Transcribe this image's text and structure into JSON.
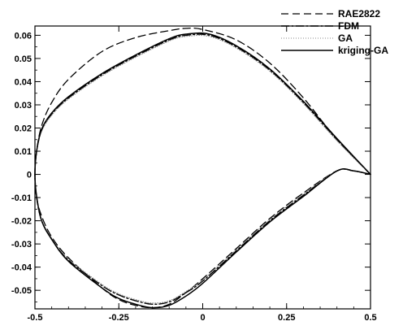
{
  "chart_data": {
    "type": "line",
    "title": "",
    "xlabel": "",
    "ylabel": "",
    "xlim": [
      -0.5,
      0.5
    ],
    "ylim": [
      -0.058,
      0.064
    ],
    "xticks": [
      "-0.5",
      "-0.25",
      "0",
      "0.25",
      "0.5"
    ],
    "xtick_values": [
      -0.5,
      -0.25,
      0,
      0.25,
      0.5
    ],
    "yticks": [
      "0.06",
      "0.05",
      "0.04",
      "0.03",
      "0.02",
      "0.01",
      "0",
      "-0.01",
      "-0.02",
      "-0.03",
      "-0.04",
      "-0.05"
    ],
    "ytick_values": [
      0.06,
      0.05,
      0.04,
      0.03,
      0.02,
      0.01,
      0,
      -0.01,
      -0.02,
      -0.03,
      -0.04,
      -0.05
    ],
    "grid": false,
    "legend_position": "top-right",
    "series": [
      {
        "name": "RAE2822",
        "style": "dashed",
        "x": [
          0.5,
          0.4,
          0.3,
          0.2,
          0.1,
          0.0,
          -0.05,
          -0.1,
          -0.2,
          -0.3,
          -0.4,
          -0.45,
          -0.48,
          -0.495,
          -0.5,
          -0.495,
          -0.48,
          -0.45,
          -0.4,
          -0.3,
          -0.25,
          -0.2,
          -0.15,
          -0.1,
          -0.05,
          0.0,
          0.1,
          0.2,
          0.3,
          0.4,
          0.45,
          0.5
        ],
        "y": [
          0.0,
          0.015,
          0.033,
          0.048,
          0.058,
          0.0625,
          0.063,
          0.062,
          0.059,
          0.053,
          0.041,
          0.031,
          0.021,
          0.01,
          0.0,
          -0.01,
          -0.018,
          -0.027,
          -0.036,
          -0.049,
          -0.054,
          -0.0565,
          -0.0575,
          -0.056,
          -0.051,
          -0.045,
          -0.032,
          -0.019,
          -0.008,
          0.0015,
          0.0015,
          0.0
        ]
      },
      {
        "name": "FDM",
        "style": "dashdot",
        "x": [
          0.5,
          0.4,
          0.3,
          0.2,
          0.1,
          0.02,
          -0.05,
          -0.1,
          -0.2,
          -0.3,
          -0.4,
          -0.45,
          -0.48,
          -0.495,
          -0.5,
          -0.495,
          -0.48,
          -0.45,
          -0.4,
          -0.3,
          -0.25,
          -0.2,
          -0.15,
          -0.1,
          -0.05,
          0.0,
          0.1,
          0.2,
          0.3,
          0.4,
          0.45,
          0.5
        ],
        "y": [
          0.0,
          0.015,
          0.031,
          0.045,
          0.055,
          0.06,
          0.06,
          0.058,
          0.051,
          0.043,
          0.033,
          0.026,
          0.019,
          0.01,
          0.0,
          -0.01,
          -0.02,
          -0.028,
          -0.037,
          -0.048,
          -0.052,
          -0.0545,
          -0.056,
          -0.055,
          -0.051,
          -0.046,
          -0.033,
          -0.02,
          -0.009,
          0.0015,
          0.0015,
          0.0
        ]
      },
      {
        "name": "GA",
        "style": "dotted",
        "x": [
          0.5,
          0.4,
          0.3,
          0.2,
          0.1,
          0.02,
          -0.05,
          -0.1,
          -0.2,
          -0.3,
          -0.4,
          -0.45,
          -0.48,
          -0.495,
          -0.5,
          -0.495,
          -0.48,
          -0.45,
          -0.4,
          -0.3,
          -0.25,
          -0.2,
          -0.15,
          -0.1,
          -0.05,
          0.0,
          0.1,
          0.2,
          0.3,
          0.4,
          0.45,
          0.5
        ],
        "y": [
          0.0,
          0.0145,
          0.0305,
          0.0445,
          0.0545,
          0.0595,
          0.0595,
          0.0575,
          0.0505,
          0.0425,
          0.0325,
          0.0255,
          0.0185,
          0.0095,
          0.0,
          -0.0095,
          -0.0195,
          -0.0275,
          -0.0365,
          -0.0475,
          -0.0515,
          -0.054,
          -0.0555,
          -0.0545,
          -0.0505,
          -0.0455,
          -0.0325,
          -0.0195,
          -0.0085,
          0.0015,
          0.0015,
          0.0
        ]
      },
      {
        "name": "kriging-GA",
        "style": "solid",
        "x": [
          0.5,
          0.4,
          0.3,
          0.2,
          0.1,
          0.02,
          -0.05,
          -0.1,
          -0.2,
          -0.3,
          -0.4,
          -0.45,
          -0.48,
          -0.495,
          -0.5,
          -0.495,
          -0.48,
          -0.45,
          -0.4,
          -0.3,
          -0.25,
          -0.2,
          -0.15,
          -0.1,
          -0.05,
          0.0,
          0.1,
          0.2,
          0.3,
          0.4,
          0.45,
          0.5
        ],
        "y": [
          0.0,
          0.0155,
          0.0315,
          0.0455,
          0.0555,
          0.0605,
          0.0605,
          0.0585,
          0.0515,
          0.0435,
          0.0335,
          0.0265,
          0.0195,
          0.01,
          0.0,
          -0.0095,
          -0.02,
          -0.028,
          -0.0375,
          -0.049,
          -0.0535,
          -0.056,
          -0.0575,
          -0.0565,
          -0.0525,
          -0.047,
          -0.0335,
          -0.0205,
          -0.0095,
          0.0015,
          0.0015,
          0.0
        ]
      }
    ]
  }
}
